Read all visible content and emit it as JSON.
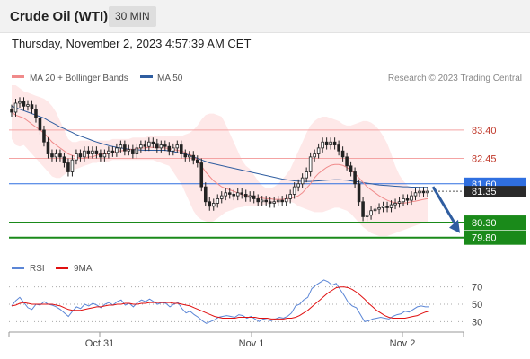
{
  "header": {
    "title": "Crude Oil (WTI)",
    "timeframe": "30 MIN"
  },
  "timestamp": "Thursday, November 2, 2023 4:57:39 AM CET",
  "research": "Research © 2023 Trading Central",
  "colors": {
    "ma20": "#f08a8a",
    "ma50": "#2f5da0",
    "bollinger_fill": "#fde0e0",
    "resistance": "#f4a3a3",
    "support": "#1a8a1a",
    "pivot": "#2f6fe0",
    "candle": "#222222",
    "rsi": "#5b86d6",
    "rsi_ma": "#e01010",
    "arrow": "#2f5da0"
  },
  "chart_data": [
    {
      "type": "candlestick",
      "title": "",
      "legend": [
        {
          "name": "MA 20 + Bollinger Bands",
          "color": "#f08a8a"
        },
        {
          "name": "MA 50",
          "color": "#2f5da0"
        }
      ],
      "x_ticks": [
        "Oct 31",
        "Nov 1",
        "Nov 2"
      ],
      "levels": [
        {
          "label": "83.40",
          "value": 83.4,
          "kind": "resistance"
        },
        {
          "label": "82.45",
          "value": 82.45,
          "kind": "resistance"
        },
        {
          "label": "81.60",
          "value": 81.6,
          "kind": "pivot"
        },
        {
          "label": "80.30",
          "value": 80.3,
          "kind": "support"
        },
        {
          "label": "79.80",
          "value": 79.8,
          "kind": "support"
        }
      ],
      "current_price": "81.35",
      "ylim": [
        79.4,
        84.6
      ],
      "closes": [
        84.0,
        84.3,
        84.35,
        84.2,
        84.25,
        84.1,
        83.8,
        83.4,
        83.0,
        82.6,
        82.5,
        82.6,
        82.5,
        82.3,
        82.0,
        82.4,
        82.6,
        82.5,
        82.7,
        82.6,
        82.7,
        82.6,
        82.5,
        82.6,
        82.7,
        82.65,
        82.8,
        82.9,
        82.7,
        82.75,
        82.6,
        82.8,
        82.9,
        82.85,
        83.0,
        82.95,
        82.8,
        82.9,
        82.85,
        82.7,
        82.8,
        82.9,
        82.6,
        82.5,
        82.55,
        82.4,
        82.3,
        81.5,
        81.0,
        80.85,
        80.95,
        81.1,
        81.2,
        81.3,
        81.25,
        81.2,
        81.3,
        81.25,
        81.15,
        81.2,
        81.1,
        81.0,
        81.05,
        81.0,
        80.95,
        81.0,
        81.05,
        81.0,
        81.1,
        81.25,
        81.5,
        81.6,
        81.8,
        82.0,
        82.5,
        82.6,
        82.8,
        83.0,
        82.9,
        83.0,
        82.9,
        82.7,
        82.5,
        82.2,
        82.0,
        81.6,
        81.0,
        80.5,
        80.55,
        80.7,
        80.75,
        80.8,
        80.85,
        80.8,
        80.9,
        80.95,
        81.0,
        81.1,
        81.05,
        81.2,
        81.3,
        81.35,
        81.3,
        81.35
      ],
      "ma20": [
        84.0,
        83.9,
        83.85,
        83.8,
        83.7,
        83.6,
        83.5,
        83.4,
        83.3,
        83.15,
        83.0,
        82.9,
        82.8,
        82.7,
        82.6,
        82.55,
        82.5,
        82.45,
        82.45,
        82.5,
        82.5,
        82.55,
        82.6,
        82.6,
        82.6,
        82.65,
        82.7,
        82.7,
        82.72,
        82.75,
        82.75,
        82.78,
        82.8,
        82.8,
        82.82,
        82.82,
        82.82,
        82.82,
        82.8,
        82.78,
        82.75,
        82.72,
        82.7,
        82.65,
        82.6,
        82.5,
        82.4,
        82.2,
        82.0,
        81.85,
        81.7,
        81.6,
        81.5,
        81.45,
        81.4,
        81.35,
        81.3,
        81.25,
        81.2,
        81.2,
        81.18,
        81.15,
        81.12,
        81.1,
        81.1,
        81.08,
        81.08,
        81.08,
        81.1,
        81.12,
        81.15,
        81.2,
        81.3,
        81.45,
        81.6,
        81.8,
        81.95,
        82.05,
        82.15,
        82.22,
        82.25,
        82.25,
        82.22,
        82.15,
        82.05,
        81.95,
        81.8,
        81.65,
        81.5,
        81.4,
        81.3,
        81.2,
        81.12,
        81.05,
        81.0,
        80.97,
        80.95,
        80.95,
        80.97,
        81.0,
        81.02,
        81.05,
        81.08,
        81.1
      ],
      "ma50": [
        84.2,
        84.15,
        84.1,
        84.05,
        84.0,
        83.95,
        83.9,
        83.85,
        83.8,
        83.72,
        83.65,
        83.58,
        83.5,
        83.45,
        83.38,
        83.32,
        83.25,
        83.2,
        83.15,
        83.1,
        83.05,
        83.0,
        82.96,
        82.92,
        82.88,
        82.85,
        82.82,
        82.8,
        82.78,
        82.76,
        82.75,
        82.74,
        82.73,
        82.72,
        82.72,
        82.72,
        82.72,
        82.72,
        82.72,
        82.7,
        82.68,
        82.65,
        82.62,
        82.6,
        82.55,
        82.5,
        82.45,
        82.4,
        82.35,
        82.3,
        82.27,
        82.24,
        82.21,
        82.18,
        82.15,
        82.12,
        82.09,
        82.06,
        82.03,
        82.0,
        81.97,
        81.94,
        81.91,
        81.88,
        81.85,
        81.82,
        81.79,
        81.76,
        81.74,
        81.72,
        81.7,
        81.69,
        81.68,
        81.68,
        81.68,
        81.69,
        81.7,
        81.71,
        81.72,
        81.73,
        81.74,
        81.74,
        81.73,
        81.72,
        81.7,
        81.68,
        81.66,
        81.64,
        81.62,
        81.6,
        81.58,
        81.56,
        81.55,
        81.54,
        81.53,
        81.52,
        81.51,
        81.5,
        81.5,
        81.49,
        81.49,
        81.48,
        81.48,
        81.48
      ],
      "bb_upper": [
        84.9,
        84.9,
        84.8,
        84.7,
        84.65,
        84.6,
        84.55,
        84.5,
        84.45,
        84.35,
        84.2,
        84.0,
        83.7,
        83.4,
        83.1,
        83.0,
        83.0,
        83.05,
        83.05,
        83.05,
        83.05,
        83.05,
        83.05,
        83.05,
        83.05,
        83.1,
        83.1,
        83.1,
        83.1,
        83.1,
        83.15,
        83.15,
        83.15,
        83.15,
        83.2,
        83.2,
        83.2,
        83.2,
        83.2,
        83.2,
        83.2,
        83.2,
        83.2,
        83.25,
        83.3,
        83.4,
        83.55,
        83.75,
        83.9,
        83.95,
        83.95,
        83.9,
        83.85,
        83.6,
        83.3,
        83.0,
        82.7,
        82.4,
        82.2,
        82.1,
        81.9,
        81.7,
        81.55,
        81.45,
        81.45,
        81.5,
        81.6,
        81.75,
        81.9,
        82.1,
        82.4,
        82.7,
        83.0,
        83.3,
        83.55,
        83.7,
        83.8,
        83.85,
        83.85,
        83.8,
        83.75,
        83.7,
        83.6,
        83.55,
        83.55,
        83.6,
        83.65,
        83.7,
        83.7,
        83.65,
        83.55,
        83.4,
        83.2,
        82.95,
        82.6,
        82.2,
        81.9,
        81.7,
        81.55,
        81.45,
        81.4,
        81.4,
        81.4,
        81.4
      ],
      "bb_lower": [
        83.1,
        82.9,
        82.85,
        82.9,
        82.75,
        82.6,
        82.45,
        82.3,
        82.15,
        82.0,
        81.85,
        81.8,
        81.8,
        81.9,
        82.0,
        82.05,
        82.1,
        82.15,
        82.2,
        82.25,
        82.3,
        82.3,
        82.35,
        82.35,
        82.35,
        82.4,
        82.4,
        82.4,
        82.4,
        82.4,
        82.4,
        82.4,
        82.4,
        82.4,
        82.4,
        82.4,
        82.35,
        82.3,
        82.25,
        82.2,
        82.0,
        81.8,
        81.6,
        81.3,
        81.0,
        80.7,
        80.5,
        80.4,
        80.35,
        80.3,
        80.35,
        80.45,
        80.55,
        80.65,
        80.7,
        80.75,
        80.8,
        80.82,
        80.85,
        80.85,
        80.85,
        80.85,
        80.9,
        80.9,
        80.95,
        80.95,
        80.95,
        81.0,
        81.0,
        81.0,
        80.95,
        80.85,
        80.8,
        80.75,
        80.7,
        80.65,
        80.65,
        80.65,
        80.7,
        80.75,
        80.8,
        80.8,
        80.75,
        80.7,
        80.6,
        80.45,
        80.3,
        80.15,
        80.05,
        79.95,
        79.9,
        79.85,
        79.85,
        79.85,
        79.9,
        79.95,
        80.0,
        80.05,
        80.1,
        80.15,
        80.2,
        80.25,
        80.3,
        80.3
      ]
    },
    {
      "type": "line",
      "title": "",
      "legend": [
        {
          "name": "RSI",
          "color": "#5b86d6"
        },
        {
          "name": "9MA",
          "color": "#e01010"
        }
      ],
      "y_ticks": [
        "70",
        "50",
        "30"
      ],
      "ylim": [
        20,
        80
      ],
      "rsi": [
        48,
        54,
        58,
        52,
        46,
        44,
        50,
        49,
        53,
        50,
        49,
        47,
        44,
        40,
        36,
        42,
        47,
        45,
        50,
        48,
        51,
        49,
        46,
        50,
        52,
        49,
        53,
        55,
        49,
        51,
        47,
        52,
        55,
        53,
        56,
        53,
        50,
        52,
        51,
        47,
        50,
        52,
        45,
        40,
        42,
        38,
        35,
        31,
        28,
        30,
        32,
        35,
        36,
        37,
        36,
        35,
        38,
        37,
        34,
        36,
        33,
        30,
        33,
        32,
        31,
        33,
        35,
        34,
        36,
        40,
        48,
        50,
        55,
        58,
        68,
        72,
        75,
        78,
        76,
        72,
        74,
        67,
        60,
        52,
        48,
        46,
        38,
        30,
        31,
        33,
        34,
        35,
        34,
        33,
        36,
        38,
        39,
        42,
        41,
        44,
        47,
        48,
        47,
        47
      ],
      "rsi_ma": [
        48,
        49,
        51,
        52,
        51,
        50,
        50,
        50,
        50,
        50,
        50,
        49,
        48,
        46,
        44,
        43,
        43,
        43,
        44,
        45,
        46,
        47,
        47,
        48,
        49,
        49,
        50,
        50,
        51,
        51,
        50,
        50,
        51,
        51,
        52,
        52,
        52,
        52,
        52,
        52,
        51,
        51,
        50,
        49,
        48,
        46,
        44,
        42,
        40,
        38,
        36,
        35,
        34,
        34,
        34,
        34,
        35,
        35,
        35,
        35,
        35,
        34,
        34,
        34,
        33,
        33,
        33,
        33,
        34,
        34,
        35,
        37,
        40,
        43,
        47,
        51,
        55,
        59,
        63,
        66,
        69,
        70,
        70,
        69,
        67,
        64,
        60,
        56,
        51,
        47,
        43,
        40,
        37,
        35,
        34,
        34,
        34,
        34,
        35,
        36,
        37,
        39,
        41,
        42
      ]
    }
  ]
}
